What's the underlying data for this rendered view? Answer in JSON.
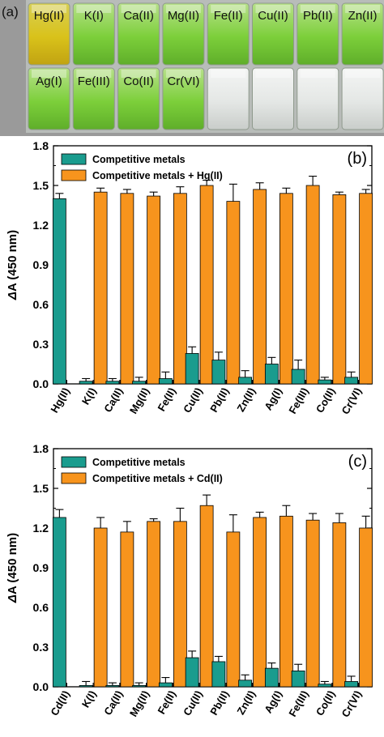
{
  "panel_a": {
    "letter": "(a)",
    "vial_labels_row1": [
      "Hg(II)",
      "K(I)",
      "Ca(II)",
      "Mg(II)",
      "Fe(II)",
      "Cu(II)",
      "Pb(II)",
      "Zn(II)"
    ],
    "vial_labels_row2": [
      "Ag(I)",
      "Fe(III)",
      "Co(II)",
      "Cr(VI)"
    ],
    "colors": {
      "hg_vial": "#d9c21a",
      "green_vial": "#7ccf3a",
      "clear_vial": "#e4e7e5",
      "background": "#9a9a9a"
    }
  },
  "chart_data": [
    {
      "panel": "b",
      "letter": "(b)",
      "type": "bar",
      "ylabel": "ΔA (450 nm)",
      "ylim": [
        0,
        1.8
      ],
      "yticks": [
        "0.0",
        "0.3",
        "0.6",
        "0.9",
        "1.2",
        "1.5",
        "1.8"
      ],
      "categories": [
        "Hg(II)",
        "K(I)",
        "Ca(II)",
        "Mg(II)",
        "Fe(II)",
        "Cu(II)",
        "Pb(II)",
        "Zn(II)",
        "Ag(I)",
        "Fe(III)",
        "Co(II)",
        "Cr(VI)"
      ],
      "series": [
        {
          "name": "Competitive metals",
          "color": "#1a9c8e",
          "values": [
            1.4,
            0.02,
            0.02,
            0.02,
            0.04,
            0.23,
            0.18,
            0.05,
            0.15,
            0.11,
            0.03,
            0.05
          ],
          "errors": [
            0.04,
            0.02,
            0.02,
            0.03,
            0.05,
            0.05,
            0.06,
            0.05,
            0.05,
            0.07,
            0.02,
            0.04
          ]
        },
        {
          "name": "Competitive metals + Hg(II)",
          "color": "#f7941d",
          "values": [
            null,
            1.45,
            1.44,
            1.42,
            1.44,
            1.5,
            1.38,
            1.47,
            1.44,
            1.5,
            1.43,
            1.44
          ],
          "errors": [
            null,
            0.03,
            0.03,
            0.03,
            0.05,
            0.04,
            0.13,
            0.05,
            0.04,
            0.07,
            0.02,
            0.03
          ]
        }
      ],
      "legend": "top-left"
    },
    {
      "panel": "c",
      "letter": "(c)",
      "type": "bar",
      "ylabel": "ΔA (450 nm)",
      "ylim": [
        0,
        1.8
      ],
      "yticks": [
        "0.0",
        "0.3",
        "0.6",
        "0.9",
        "1.2",
        "1.5",
        "1.8"
      ],
      "categories": [
        "Cd(II)",
        "K(I)",
        "Ca(II)",
        "Mg(II)",
        "Fe(II)",
        "Cu(II)",
        "Pb(II)",
        "Zn(II)",
        "Ag(I)",
        "Fe(III)",
        "Co(II)",
        "Cr(VI)"
      ],
      "series": [
        {
          "name": "Competitive metals",
          "color": "#1a9c8e",
          "values": [
            1.28,
            0.01,
            0.01,
            0.01,
            0.03,
            0.22,
            0.19,
            0.05,
            0.14,
            0.12,
            0.02,
            0.04
          ],
          "errors": [
            0.06,
            0.03,
            0.02,
            0.02,
            0.04,
            0.05,
            0.04,
            0.04,
            0.04,
            0.05,
            0.02,
            0.04
          ]
        },
        {
          "name": "Competitive metals + Cd(II)",
          "color": "#f7941d",
          "values": [
            null,
            1.2,
            1.17,
            1.25,
            1.25,
            1.37,
            1.17,
            1.28,
            1.29,
            1.26,
            1.24,
            1.2
          ],
          "errors": [
            null,
            0.08,
            0.08,
            0.02,
            0.1,
            0.08,
            0.13,
            0.04,
            0.08,
            0.05,
            0.07,
            0.09
          ]
        }
      ],
      "legend": "top-left"
    }
  ]
}
